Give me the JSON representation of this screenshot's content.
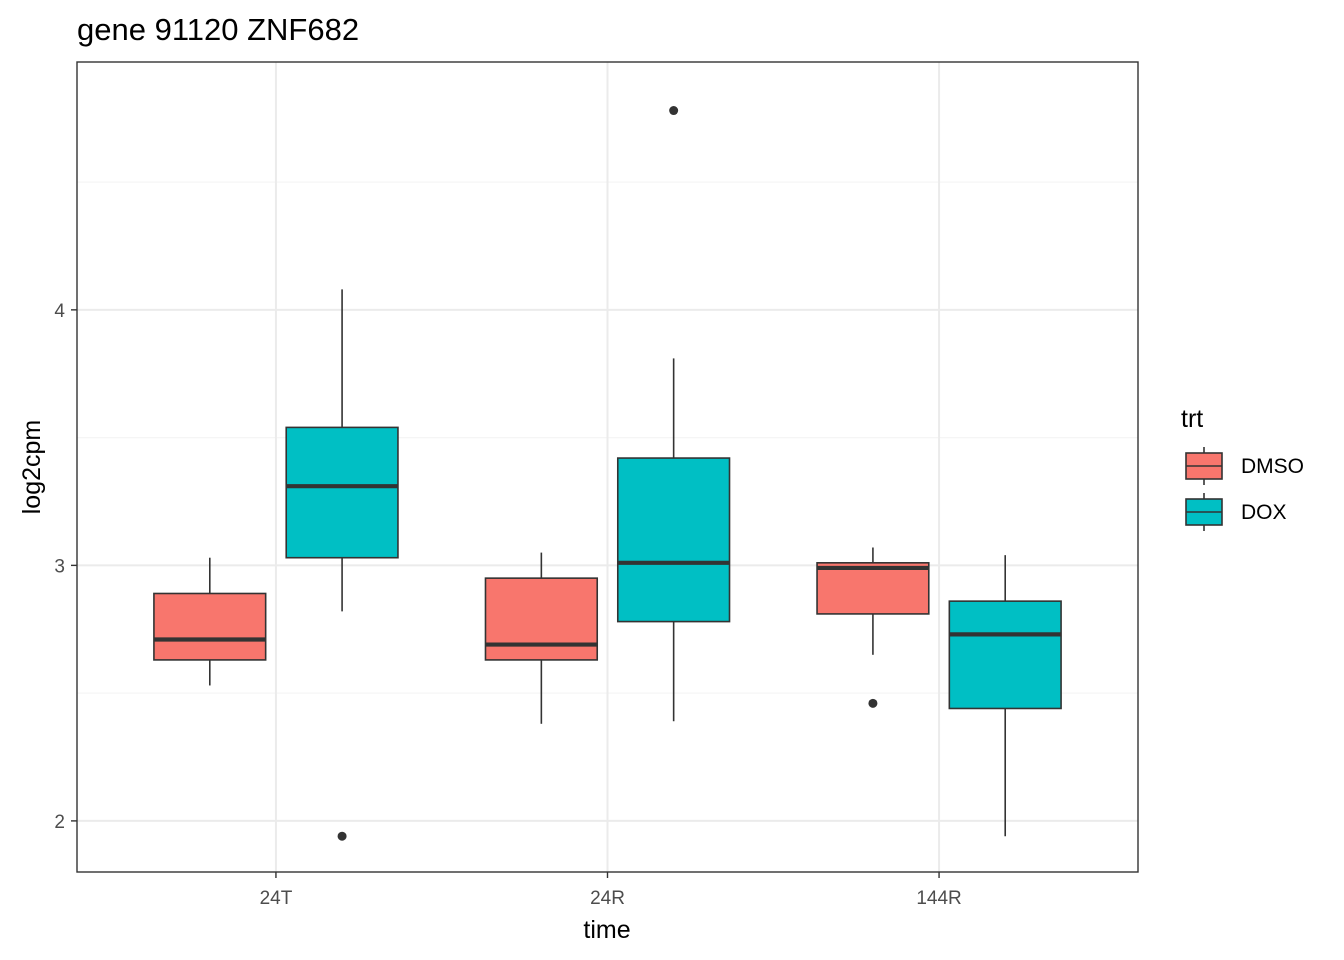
{
  "chart_data": {
    "type": "boxplot",
    "title": "gene 91120 ZNF682",
    "xlabel": "time",
    "ylabel": "log2cpm",
    "categories": [
      "24T",
      "24R",
      "144R"
    ],
    "y_ticks": [
      2,
      3,
      4
    ],
    "ylim": [
      1.8,
      4.97
    ],
    "grid": true,
    "legend": {
      "title": "trt",
      "position": "right",
      "entries": [
        {
          "name": "DMSO",
          "color": "#F8766D"
        },
        {
          "name": "DOX",
          "color": "#00BFC4"
        }
      ]
    },
    "series": [
      {
        "name": "DMSO",
        "color": "#F8766D",
        "boxes": [
          {
            "category": "24T",
            "lower_whisker": 2.53,
            "q1": 2.63,
            "median": 2.71,
            "q3": 2.89,
            "upper_whisker": 3.03,
            "outliers": []
          },
          {
            "category": "24R",
            "lower_whisker": 2.38,
            "q1": 2.63,
            "median": 2.69,
            "q3": 2.95,
            "upper_whisker": 3.05,
            "outliers": []
          },
          {
            "category": "144R",
            "lower_whisker": 2.65,
            "q1": 2.81,
            "median": 2.99,
            "q3": 3.01,
            "upper_whisker": 3.07,
            "outliers": [
              2.46
            ]
          }
        ]
      },
      {
        "name": "DOX",
        "color": "#00BFC4",
        "boxes": [
          {
            "category": "24T",
            "lower_whisker": 2.82,
            "q1": 3.03,
            "median": 3.31,
            "q3": 3.54,
            "upper_whisker": 4.08,
            "outliers": [
              1.94
            ]
          },
          {
            "category": "24R",
            "lower_whisker": 2.39,
            "q1": 2.78,
            "median": 3.01,
            "q3": 3.42,
            "upper_whisker": 3.81,
            "outliers": [
              4.78
            ]
          },
          {
            "category": "144R",
            "lower_whisker": 1.94,
            "q1": 2.44,
            "median": 2.73,
            "q3": 2.86,
            "upper_whisker": 3.04,
            "outliers": []
          }
        ]
      }
    ]
  },
  "colors": {
    "panel_border": "#333333",
    "grid_major": "#EBEBEB",
    "grid_minor": "#F5F5F5",
    "box_outline": "#333333"
  }
}
